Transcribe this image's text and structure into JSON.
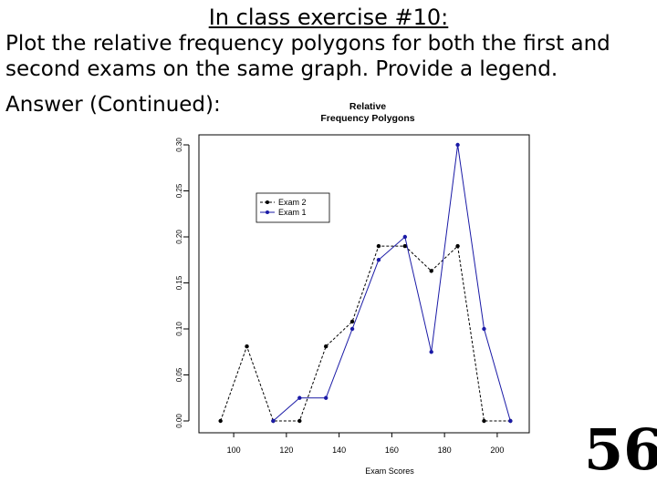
{
  "slide": {
    "title": "In class exercise #10:",
    "body_lines": [
      "Plot the relative frequency polygons for both the first and",
      "second exams on the same graph.  Provide a legend."
    ],
    "answer_label": "Answer (Continued):",
    "slide_number": "56"
  },
  "chart_data": {
    "type": "line",
    "title": "Relative\nFrequency Polygons",
    "xlabel": "Exam Scores",
    "ylabel": "",
    "xlim": [
      92,
      208
    ],
    "ylim": [
      0,
      0.3
    ],
    "xticks": [
      100,
      120,
      140,
      160,
      180,
      200
    ],
    "yticks": [
      0.0,
      0.05,
      0.1,
      0.15,
      0.2,
      0.25,
      0.3
    ],
    "ytick_labels": [
      "0.00",
      "0.05",
      "0.10",
      "0.15",
      "0.20",
      "0.25",
      "0.30"
    ],
    "legend_position": "upper-left",
    "series": [
      {
        "name": "Exam 2",
        "color": "#000000",
        "style": "dashed",
        "x": [
          95,
          105,
          115,
          125,
          135,
          145,
          155,
          165,
          175,
          185,
          195,
          205
        ],
        "values": [
          0.0,
          0.081,
          0.0,
          0.0,
          0.081,
          0.108,
          0.19,
          0.19,
          0.163,
          0.19,
          0.0,
          0.0
        ]
      },
      {
        "name": "Exam 1",
        "color": "#1a1aa6",
        "style": "solid",
        "x": [
          115,
          125,
          135,
          145,
          155,
          165,
          175,
          185,
          195,
          205
        ],
        "values": [
          0.0,
          0.025,
          0.025,
          0.1,
          0.175,
          0.2,
          0.075,
          0.3,
          0.1,
          0.0
        ]
      }
    ]
  }
}
